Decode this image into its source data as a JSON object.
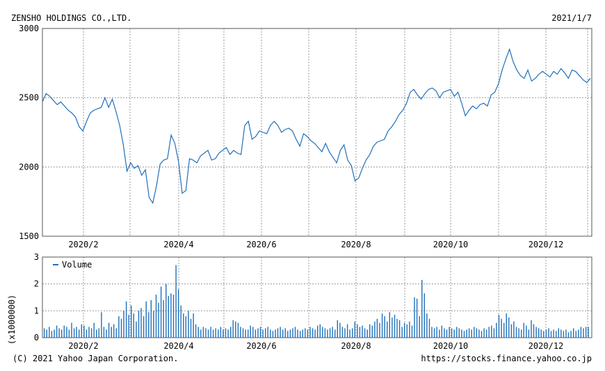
{
  "header": {
    "company": "ZENSHO HOLDINGS CO.,LTD.",
    "date": "2021/1/7"
  },
  "footer": {
    "copyright": "(C) 2021 Yahoo Japan Corporation.",
    "source": "https://stocks.finance.yahoo.co.jp"
  },
  "colors": {
    "line": "#1f6fb9",
    "bar": "#1f6fb9",
    "grid": "#9a9a9a",
    "frame": "#555555"
  },
  "chart_data": [
    {
      "type": "line",
      "name": "price",
      "ylim": [
        1500,
        3000
      ],
      "yticks": [
        "3000",
        "2500",
        "2000",
        "1500"
      ],
      "xticks": [
        "2020/2",
        "2020/4",
        "2020/6",
        "2020/8",
        "2020/10",
        "2020/12"
      ],
      "grid": true,
      "series": [
        {
          "values": [
            2470,
            2530,
            2510,
            2480,
            2450,
            2470,
            2440,
            2410,
            2390,
            2360,
            2290,
            2260,
            2330,
            2390,
            2410,
            2420,
            2430,
            2500,
            2430,
            2490,
            2400,
            2300,
            2160,
            1970,
            2030,
            1990,
            2010,
            1940,
            1980,
            1780,
            1740,
            1860,
            2020,
            2050,
            2060,
            2230,
            2170,
            2040,
            1810,
            1830,
            2060,
            2050,
            2030,
            2080,
            2100,
            2120,
            2050,
            2060,
            2100,
            2120,
            2140,
            2090,
            2120,
            2100,
            2090,
            2300,
            2330,
            2200,
            2220,
            2260,
            2250,
            2240,
            2300,
            2330,
            2300,
            2250,
            2270,
            2280,
            2260,
            2200,
            2150,
            2240,
            2220,
            2190,
            2170,
            2140,
            2110,
            2170,
            2110,
            2070,
            2030,
            2120,
            2160,
            2050,
            2010,
            1900,
            1920,
            1990,
            2050,
            2090,
            2150,
            2180,
            2190,
            2200,
            2260,
            2290,
            2330,
            2380,
            2410,
            2460,
            2540,
            2560,
            2520,
            2490,
            2530,
            2560,
            2570,
            2550,
            2500,
            2540,
            2550,
            2560,
            2510,
            2540,
            2460,
            2370,
            2410,
            2440,
            2420,
            2450,
            2460,
            2440,
            2520,
            2540,
            2600,
            2700,
            2780,
            2850,
            2760,
            2700,
            2660,
            2640,
            2700,
            2620,
            2640,
            2670,
            2690,
            2670,
            2650,
            2690,
            2670,
            2710,
            2680,
            2640,
            2700,
            2690,
            2660,
            2630,
            2610,
            2640
          ]
        }
      ]
    },
    {
      "type": "bar",
      "name": "volume",
      "ylabel": "(x1000000)",
      "ylim": [
        0,
        3
      ],
      "yticks": [
        "3",
        "2",
        "1",
        "0"
      ],
      "xticks": [
        "2020/2",
        "2020/4",
        "2020/6",
        "2020/8",
        "2020/10",
        "2020/12"
      ],
      "grid": true,
      "legend": {
        "label": "Volume",
        "placement": "top-left"
      },
      "series": [
        {
          "name": "Volume",
          "values": [
            0.35,
            0.3,
            0.4,
            0.25,
            0.3,
            0.45,
            0.35,
            0.3,
            0.45,
            0.4,
            0.3,
            0.55,
            0.35,
            0.4,
            0.3,
            0.5,
            0.45,
            0.3,
            0.4,
            0.35,
            0.55,
            0.3,
            0.35,
            0.95,
            0.4,
            0.3,
            0.55,
            0.4,
            0.5,
            0.35,
            0.8,
            0.7,
            1.0,
            1.35,
            0.85,
            1.2,
            0.9,
            0.6,
            1.0,
            1.1,
            0.8,
            1.35,
            0.95,
            1.4,
            1.0,
            1.6,
            1.3,
            1.9,
            1.4,
            2.0,
            1.55,
            1.65,
            1.6,
            2.7,
            1.8,
            1.2,
            0.9,
            0.8,
            1.0,
            0.7,
            0.9,
            0.5,
            0.4,
            0.3,
            0.4,
            0.35,
            0.3,
            0.4,
            0.3,
            0.35,
            0.3,
            0.4,
            0.3,
            0.35,
            0.3,
            0.4,
            0.65,
            0.6,
            0.55,
            0.4,
            0.35,
            0.3,
            0.3,
            0.45,
            0.4,
            0.3,
            0.35,
            0.4,
            0.3,
            0.35,
            0.4,
            0.3,
            0.25,
            0.3,
            0.35,
            0.4,
            0.3,
            0.35,
            0.25,
            0.3,
            0.35,
            0.4,
            0.3,
            0.25,
            0.3,
            0.35,
            0.3,
            0.4,
            0.35,
            0.3,
            0.45,
            0.5,
            0.4,
            0.35,
            0.3,
            0.35,
            0.4,
            0.3,
            0.65,
            0.55,
            0.4,
            0.35,
            0.5,
            0.3,
            0.35,
            0.6,
            0.5,
            0.4,
            0.45,
            0.35,
            0.3,
            0.5,
            0.45,
            0.6,
            0.7,
            0.55,
            0.9,
            0.8,
            0.6,
            0.95,
            0.75,
            0.85,
            0.7,
            0.65,
            0.4,
            0.55,
            0.5,
            0.6,
            0.45,
            1.5,
            1.45,
            0.8,
            2.15,
            1.65,
            0.9,
            0.7,
            0.4,
            0.35,
            0.4,
            0.3,
            0.45,
            0.35,
            0.3,
            0.4,
            0.35,
            0.3,
            0.4,
            0.35,
            0.3,
            0.25,
            0.3,
            0.35,
            0.3,
            0.4,
            0.35,
            0.3,
            0.25,
            0.35,
            0.3,
            0.4,
            0.45,
            0.35,
            0.55,
            0.85,
            0.7,
            0.55,
            0.9,
            0.75,
            0.5,
            0.6,
            0.4,
            0.35,
            0.3,
            0.55,
            0.45,
            0.3,
            0.65,
            0.5,
            0.4,
            0.35,
            0.3,
            0.25,
            0.3,
            0.35,
            0.25,
            0.3,
            0.25,
            0.35,
            0.3,
            0.25,
            0.3,
            0.2,
            0.25,
            0.35,
            0.25,
            0.3,
            0.4,
            0.35,
            0.4,
            0.4
          ]
        }
      ]
    }
  ]
}
